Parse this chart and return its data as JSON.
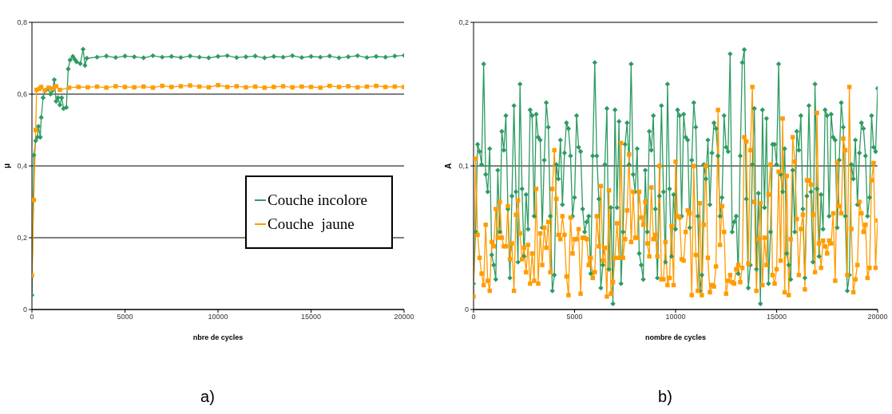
{
  "chart_data": [
    {
      "type": "line",
      "xlabel": "nbre de cycles",
      "ylabel": "μ",
      "xlim": [
        0,
        20000
      ],
      "xticks": [
        0,
        5000,
        10000,
        15000,
        20000
      ],
      "ylim": [
        0,
        0.8
      ],
      "yticks": [
        0,
        {
          "value": 0.2,
          "label": "0,2"
        },
        {
          "value": 0.4,
          "label": "0,4"
        },
        {
          "value": 0.6,
          "label": "0,6"
        },
        {
          "value": 0.8,
          "label": "0,8"
        }
      ],
      "grid": "y",
      "legend": "right",
      "line_style": "solid",
      "annotations": [
        "a)"
      ],
      "series": [
        {
          "name": "Couche incolore",
          "color": "#2e9b62",
          "marker": "diamond",
          "x": [
            0,
            100,
            200,
            300,
            350,
            450,
            500,
            600,
            700,
            850,
            1000,
            1100,
            1200,
            1300,
            1400,
            1500,
            1600,
            1700,
            1850,
            1950,
            2050,
            2200,
            2300,
            2400,
            2600,
            2750,
            2850,
            2950,
            3500,
            4000,
            4500,
            5000,
            5500,
            6000,
            6500,
            7000,
            7500,
            8000,
            8500,
            9000,
            9500,
            10000,
            10500,
            11000,
            11500,
            12000,
            12500,
            13000,
            13500,
            14000,
            14500,
            15000,
            15500,
            16000,
            16500,
            17000,
            17500,
            18000,
            18500,
            19000,
            19500,
            20000
          ],
          "values": [
            0.04,
            0.43,
            0.47,
            0.48,
            0.51,
            0.48,
            0.535,
            0.59,
            0.61,
            0.615,
            0.6,
            0.61,
            0.64,
            0.58,
            0.59,
            0.57,
            0.59,
            0.56,
            0.563,
            0.67,
            0.695,
            0.705,
            0.697,
            0.69,
            0.685,
            0.725,
            0.68,
            0.7,
            0.703,
            0.706,
            0.702,
            0.706,
            0.704,
            0.701,
            0.707,
            0.703,
            0.705,
            0.702,
            0.706,
            0.703,
            0.701,
            0.705,
            0.707,
            0.702,
            0.704,
            0.706,
            0.701,
            0.705,
            0.703,
            0.707,
            0.702,
            0.705,
            0.703,
            0.706,
            0.701,
            0.704,
            0.707,
            0.702,
            0.705,
            0.703,
            0.706,
            0.708
          ]
        },
        {
          "name": "Couche  jaune",
          "color": "#ff9c00",
          "marker": "square",
          "x": [
            0,
            100,
            200,
            250,
            400,
            500,
            700,
            900,
            1100,
            1300,
            1500,
            2000,
            2500,
            3000,
            3500,
            4000,
            4500,
            5000,
            5500,
            6000,
            6500,
            7000,
            7500,
            8000,
            8500,
            9000,
            9500,
            10000,
            10500,
            11000,
            11500,
            12000,
            12500,
            13000,
            13500,
            14000,
            14500,
            15000,
            15500,
            16000,
            16500,
            17000,
            17500,
            18000,
            18500,
            19000,
            19500,
            20000
          ],
          "values": [
            0.095,
            0.305,
            0.5,
            0.612,
            0.615,
            0.62,
            0.61,
            0.618,
            0.615,
            0.622,
            0.612,
            0.618,
            0.62,
            0.619,
            0.621,
            0.618,
            0.622,
            0.62,
            0.619,
            0.621,
            0.618,
            0.623,
            0.62,
            0.622,
            0.624,
            0.621,
            0.619,
            0.625,
            0.62,
            0.622,
            0.619,
            0.621,
            0.618,
            0.62,
            0.622,
            0.619,
            0.621,
            0.62,
            0.618,
            0.623,
            0.62,
            0.622,
            0.619,
            0.621,
            0.623,
            0.62,
            0.621,
            0.62
          ]
        }
      ]
    },
    {
      "type": "line",
      "xlabel": "nombre de cycles",
      "ylabel": "A",
      "xlim": [
        0,
        20000
      ],
      "xticks": [
        0,
        5000,
        10000,
        15000,
        20000
      ],
      "ylim": [
        0,
        0.2
      ],
      "yticks": [
        0,
        {
          "value": 0.1,
          "label": "0,1"
        },
        {
          "value": 0.2,
          "label": "0,2"
        }
      ],
      "grid": "y",
      "line_style": "solid",
      "annotations": [
        "b)"
      ],
      "x": [
        0,
        100,
        200,
        300,
        400,
        500,
        600,
        700,
        800,
        900,
        1000,
        1100,
        1200,
        1300,
        1400,
        1500,
        1600,
        1700,
        1800,
        1900,
        2000,
        2100,
        2200,
        2300,
        2400,
        2500,
        2600,
        2700,
        2800,
        2900,
        3000,
        3100,
        3200,
        3300,
        3400,
        3500,
        3600,
        3700,
        3800,
        3900,
        4000,
        4100,
        4200,
        4300,
        4400,
        4500,
        4600,
        4700,
        4800,
        4900,
        5000,
        5100,
        5200,
        5300,
        5400,
        5500,
        5600,
        5700,
        5800,
        5900,
        6000,
        6100,
        6200,
        6300,
        6400,
        6500,
        6600,
        6700,
        6800,
        6900,
        7000,
        7100,
        7200,
        7300,
        7400,
        7500,
        7600,
        7700,
        7800,
        7900,
        8000,
        8100,
        8200,
        8300,
        8400,
        8500,
        8600,
        8700,
        8800,
        8900,
        9000,
        9100,
        9200,
        9300,
        9400,
        9500,
        9600,
        9700,
        9800,
        9900,
        10000,
        10100,
        10200,
        10300,
        10400,
        10500,
        10600,
        10700,
        10800,
        10900,
        11000,
        11100,
        11200,
        11300,
        11400,
        11500,
        11600,
        11700,
        11800,
        11900,
        12000,
        12100,
        12200,
        12300,
        12400,
        12500,
        12600,
        12700,
        12800,
        12900,
        13000,
        13100,
        13200,
        13300,
        13400,
        13500,
        13600,
        13700,
        13800,
        13900,
        14000,
        14100,
        14200,
        14300,
        14400,
        14500,
        14600,
        14700,
        14800,
        14900,
        15000,
        15100,
        15200,
        15300,
        15400,
        15500,
        15600,
        15700,
        15800,
        15900,
        16000,
        16100,
        16200,
        16300,
        16400,
        16500,
        16600,
        16700,
        16800,
        16900,
        17000,
        17100,
        17200,
        17300,
        17400,
        17500,
        17600,
        17700,
        17800,
        17900,
        18000,
        18100,
        18200,
        18300,
        18400,
        18500,
        18600,
        18700,
        18800,
        18900,
        19000,
        19100,
        19200,
        19300,
        19400,
        19500,
        19600,
        19700,
        19800,
        19900,
        20000
      ],
      "series": [
        {
          "color": "#2e9b62",
          "marker": "diamond",
          "values": [
            0.018,
            0.054,
            0.115,
            0.11,
            0.101,
            0.171,
            0.094,
            0.082,
            0.112,
            0.038,
            0.031,
            0.021,
            0.097,
            0.054,
            0.124,
            0.111,
            0.135,
            0.07,
            0.022,
            0.079,
            0.142,
            0.082,
            0.033,
            0.157,
            0.084,
            0.037,
            0.08,
            0.056,
            0.139,
            0.135,
            0.065,
            0.136,
            0.12,
            0.118,
            0.057,
            0.104,
            0.144,
            0.127,
            0.065,
            0.013,
            0.024,
            0.101,
            0.091,
            0.118,
            0.073,
            0.109,
            0.13,
            0.126,
            0.107,
            0.065,
            0.078,
            0.135,
            0.113,
            0.11,
            0.07,
            0.054,
            0.061,
            0.065,
            0.025,
            0.107,
            0.172,
            0.107,
            0.077,
            0.015,
            0.031,
            0.101,
            0.14,
            0.028,
            0.071,
            0.004,
            0.139,
            0.071,
            0.131,
            0.018,
            0.054,
            0.115,
            0.13,
            0.101,
            0.171,
            0.094,
            0.082,
            0.112,
            0.039,
            0.031,
            0.021,
            0.097,
            0.054,
            0.124,
            0.111,
            0.135,
            0.07,
            0.022,
            0.079,
            0.142,
            0.082,
            0.033,
            0.157,
            0.084,
            0.037,
            0.08,
            0.056,
            0.139,
            0.135,
            0.065,
            0.136,
            0.12,
            0.118,
            0.057,
            0.104,
            0.144,
            0.127,
            0.065,
            0.013,
            0.024,
            0.101,
            0.091,
            0.118,
            0.073,
            0.109,
            0.13,
            0.126,
            0.107,
            0.065,
            0.078,
            0.135,
            0.113,
            0.11,
            0.178,
            0.054,
            0.061,
            0.065,
            0.025,
            0.107,
            0.172,
            0.181,
            0.077,
            0.015,
            0.031,
            0.101,
            0.14,
            0.028,
            0.081,
            0.004,
            0.139,
            0.071,
            0.133,
            0.018,
            0.054,
            0.115,
            0.115,
            0.101,
            0.171,
            0.094,
            0.082,
            0.112,
            0.039,
            0.031,
            0.021,
            0.097,
            0.054,
            0.124,
            0.111,
            0.135,
            0.07,
            0.022,
            0.079,
            0.142,
            0.082,
            0.033,
            0.157,
            0.084,
            0.037,
            0.08,
            0.056,
            0.139,
            0.135,
            0.065,
            0.136,
            0.12,
            0.118,
            0.057,
            0.104,
            0.144,
            0.127,
            0.065,
            0.013,
            0.024,
            0.101,
            0.091,
            0.118,
            0.073,
            0.109,
            0.13,
            0.126,
            0.107,
            0.065,
            0.078,
            0.135,
            0.113,
            0.11,
            0.154
          ]
        },
        {
          "color": "#ff9c00",
          "marker": "square",
          "values": [
            0.009,
            0.105,
            0.052,
            0.036,
            0.025,
            0.017,
            0.059,
            0.02,
            0.013,
            0.047,
            0.044,
            0.07,
            0.05,
            0.075,
            0.05,
            0.044,
            0.044,
            0.072,
            0.035,
            0.046,
            0.013,
            0.066,
            0.076,
            0.053,
            0.035,
            0.043,
            0.026,
            0.045,
            0.018,
            0.039,
            0.02,
            0.084,
            0.018,
            0.053,
            0.031,
            0.057,
            0.043,
            0.061,
            0.026,
            0.084,
            0.111,
            0.077,
            0.052,
            0.049,
            0.065,
            0.052,
            0.023,
            0.01,
            0.064,
            0.039,
            0.049,
            0.049,
            0.056,
            0.011,
            0.05,
            0.05,
            0.049,
            0.031,
            0.036,
            0.022,
            0.026,
            0.065,
            0.044,
            0.086,
            0.034,
            0.043,
            0.009,
            0.083,
            0.011,
            0.019,
            0.036,
            0.06,
            0.036,
            0.116,
            0.036,
            0.049,
            0.069,
            0.108,
            0.047,
            0.082,
            0.05,
            0.05,
            0.082,
            0.064,
            0.059,
            0.075,
            0.046,
            0.037,
            0.085,
            0.049,
            0.052,
            0.037,
            0.1,
            0.021,
            0.021,
            0.047,
            0.017,
            0.022,
            0.058,
            0.017,
            0.103,
            0.065,
            0.064,
            0.035,
            0.034,
            0.054,
            0.069,
            0.067,
            0.01,
            0.1,
            0.038,
            0.013,
            0.074,
            0.01,
            0.059,
            0.1,
            0.036,
            0.012,
            0.017,
            0.016,
            0.03,
            0.139,
            0.045,
            0.072,
            0.054,
            0.011,
            0.02,
            0.024,
            0.019,
            0.018,
            0.028,
            0.031,
            0.019,
            0.029,
            0.12,
            0.117,
            0.032,
            0.111,
            0.155,
            0.075,
            0.013,
            0.049,
            0.074,
            0.017,
            0.05,
            0.031,
            0.08,
            0.101,
            0.024,
            0.018,
            0.028,
            0.096,
            0.034,
            0.133,
            0.012,
            0.093,
            0.01,
            0.049,
            0.12,
            0.103,
            0.063,
            0.024,
            0.056,
            0.066,
            0.014,
            0.09,
            0.09,
            0.087,
            0.066,
            0.026,
            0.137,
            0.046,
            0.029,
            0.048,
            0.044,
            0.039,
            0.048,
            0.046,
            0.067,
            0.02,
            0.102,
            0.072,
            0.067,
            0.119,
            0.111,
            0.024,
            0.155,
            0.056,
            0.012,
            0.021,
            0.031,
            0.075,
            0.067,
            0.054,
            0.059,
            0.022,
            0.029,
            0.09,
            0.102,
            0.029,
            0.062
          ]
        }
      ]
    }
  ]
}
